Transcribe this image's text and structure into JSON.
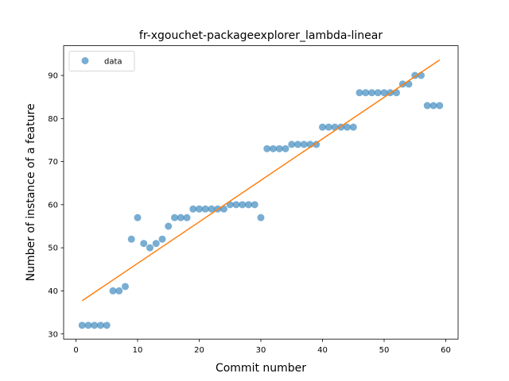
{
  "chart_data": {
    "type": "scatter",
    "title": "fr-xgouchet-packageexplorer_lambda-linear",
    "xlabel": "Commit number",
    "ylabel": "Number of instance of a feature",
    "xlim": [
      -2,
      62
    ],
    "ylim": [
      28.8,
      96.9
    ],
    "xticks": [
      0,
      10,
      20,
      30,
      40,
      50,
      60
    ],
    "yticks": [
      30,
      40,
      50,
      60,
      70,
      80,
      90
    ],
    "grid": false,
    "legend_position": "top-left",
    "series": [
      {
        "name": "data",
        "kind": "scatter",
        "color": "#1f77b4",
        "x": [
          1,
          2,
          3,
          4,
          5,
          6,
          7,
          8,
          9,
          10,
          11,
          12,
          13,
          14,
          15,
          16,
          17,
          18,
          19,
          20,
          21,
          22,
          23,
          24,
          25,
          26,
          27,
          28,
          29,
          30,
          31,
          32,
          33,
          34,
          35,
          36,
          37,
          38,
          39,
          40,
          41,
          42,
          43,
          44,
          45,
          46,
          47,
          48,
          49,
          50,
          51,
          52,
          53,
          54,
          55,
          56,
          57,
          58,
          59
        ],
        "y": [
          32,
          32,
          32,
          32,
          32,
          40,
          40,
          41,
          52,
          57,
          51,
          50,
          51,
          52,
          55,
          57,
          57,
          57,
          59,
          59,
          59,
          59,
          59,
          59,
          60,
          60,
          60,
          60,
          60,
          57,
          73,
          73,
          73,
          73,
          74,
          74,
          74,
          74,
          74,
          78,
          78,
          78,
          78,
          78,
          78,
          86,
          86,
          86,
          86,
          86,
          86,
          86,
          88,
          88,
          90,
          90,
          83,
          83,
          83
        ]
      },
      {
        "name": "",
        "kind": "line",
        "color": "#ff7f0e",
        "x": [
          1,
          59
        ],
        "y": [
          37.7,
          93.6
        ]
      }
    ]
  }
}
